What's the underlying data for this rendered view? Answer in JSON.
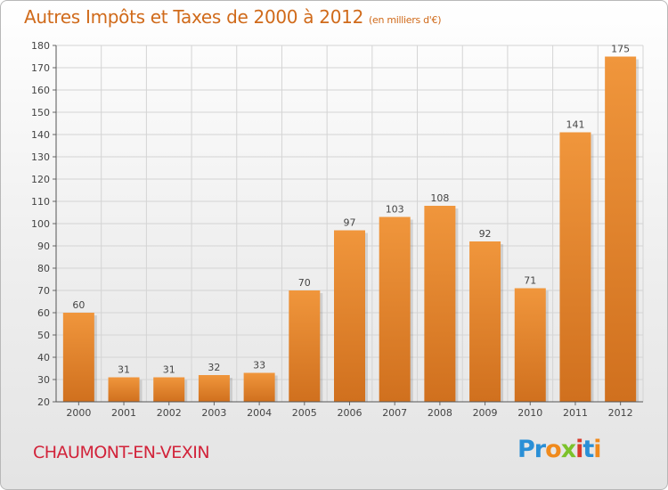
{
  "chart_data": {
    "type": "bar",
    "title": "Autres Impôts et Taxes de 2000 à 2012",
    "subtitle": "(en milliers d'€)",
    "categories": [
      "2000",
      "2001",
      "2002",
      "2003",
      "2004",
      "2005",
      "2006",
      "2007",
      "2008",
      "2009",
      "2010",
      "2011",
      "2012"
    ],
    "values": [
      60,
      31,
      31,
      32,
      33,
      70,
      97,
      103,
      108,
      92,
      71,
      141,
      175
    ],
    "ylim": [
      20,
      180
    ],
    "ytick_step": 10,
    "grid": true,
    "bar_color": "#f0963c",
    "bar_color_dark": "#d0701e"
  },
  "footer": {
    "commune": "CHAUMONT-EN-VEXIN",
    "logo": [
      {
        "ch": "P",
        "color": "#2a8fd6"
      },
      {
        "ch": "r",
        "color": "#2a8fd6"
      },
      {
        "ch": "o",
        "color": "#f08a1c"
      },
      {
        "ch": "x",
        "color": "#7cc22a"
      },
      {
        "ch": "i",
        "color": "#d93a2b"
      },
      {
        "ch": "t",
        "color": "#2a8fd6"
      },
      {
        "ch": "i",
        "color": "#f08a1c"
      }
    ]
  }
}
